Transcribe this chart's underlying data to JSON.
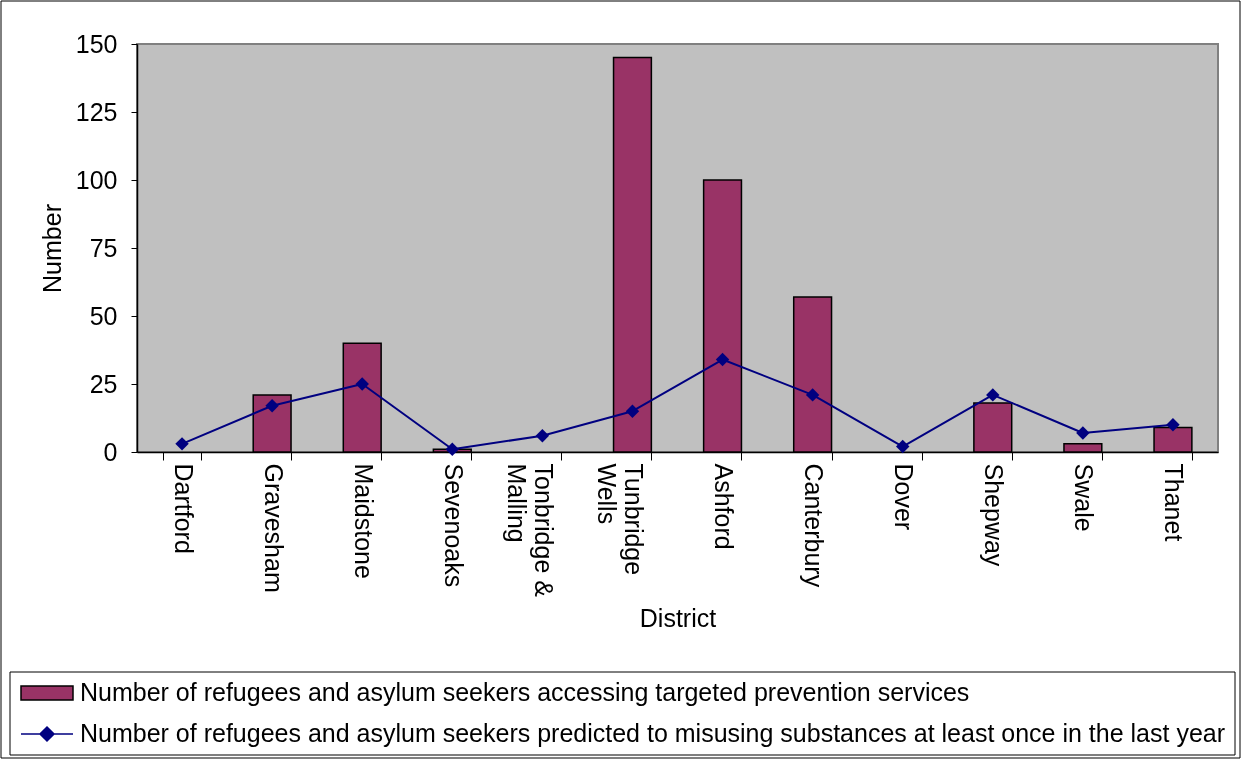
{
  "chart_data": {
    "type": "bar",
    "categories": [
      "Dartford",
      "Gravesham",
      "Maidstone",
      "Sevenoaks",
      "Tonbridge & Malling",
      "Tunbridge Wells",
      "Ashford",
      "Canterbury",
      "Dover",
      "Shepway",
      "Swale",
      "Thanet"
    ],
    "xlabel": "District",
    "ylabel": "Number",
    "ylim": [
      0,
      150
    ],
    "yticks": [
      0,
      25,
      50,
      75,
      100,
      125,
      150
    ],
    "grid": false,
    "legend": "bottom",
    "marker": "diamond",
    "line_style": "solid",
    "series": [
      {
        "name": "Number of refugees and asylum seekers accessing targeted prevention services",
        "color": "#993366",
        "values": [
          null,
          21,
          40,
          1,
          null,
          145,
          100,
          57,
          null,
          18,
          3,
          9
        ]
      },
      {
        "name": "Number of refugees and asylum seekers predicted to misusing substances at least once in the last year",
        "type": "line",
        "color": "#000080",
        "values": [
          3,
          17,
          25,
          1,
          6,
          15,
          34,
          21,
          2,
          21,
          7,
          10
        ]
      }
    ]
  }
}
